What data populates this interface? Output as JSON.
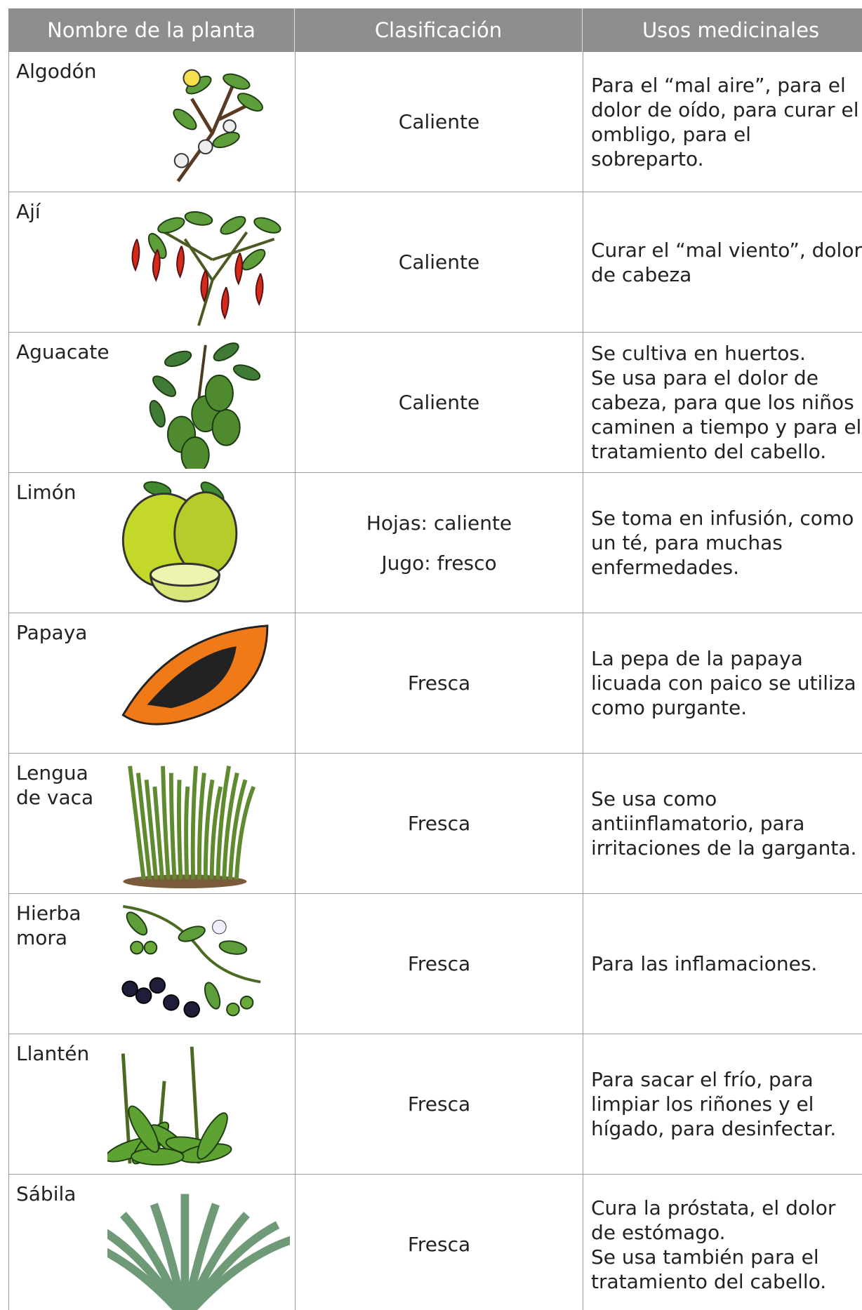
{
  "table": {
    "headers": [
      "Nombre de la planta",
      "Clasificación",
      "Usos medicinales"
    ],
    "rows": [
      {
        "name": "Algodón",
        "classification": [
          "Caliente"
        ],
        "uses": [
          "Para el “mal aire”, para el dolor de oído, para curar el ombligo, para el sobreparto."
        ]
      },
      {
        "name": "Ají",
        "classification": [
          "Caliente"
        ],
        "uses": [
          "Curar el “mal viento”, dolor de cabeza"
        ]
      },
      {
        "name": "Aguacate",
        "classification": [
          "Caliente"
        ],
        "uses": [
          "Se cultiva en huertos.",
          "Se usa para el dolor de cabeza, para que los niños caminen a tiempo y para el tratamiento del cabello."
        ]
      },
      {
        "name": "Limón",
        "classification": [
          "Hojas: caliente",
          "Jugo: fresco"
        ],
        "uses": [
          "Se toma en infusión, como un té, para muchas enfermedades."
        ]
      },
      {
        "name": "Papaya",
        "classification": [
          "Fresca"
        ],
        "uses": [
          "La pepa de la papaya licuada con paico se utiliza como purgante."
        ]
      },
      {
        "name": "Lengua de vaca",
        "classification": [
          "Fresca"
        ],
        "uses": [
          "Se usa como antiinflamatorio, para irritaciones de la garganta."
        ]
      },
      {
        "name": "Hierba mora",
        "classification": [
          "Fresca"
        ],
        "uses": [
          "Para las inflamaciones."
        ]
      },
      {
        "name": "Llantén",
        "classification": [
          "Fresca"
        ],
        "uses": [
          "Para sacar el frío, para limpiar los riñones y el hígado, para desinfectar."
        ]
      },
      {
        "name": "Sábila",
        "classification": [
          "Fresca"
        ],
        "uses": [
          "Cura la próstata, el dolor de estómago.",
          "Se usa también para el tratamiento del cabello."
        ]
      }
    ]
  }
}
